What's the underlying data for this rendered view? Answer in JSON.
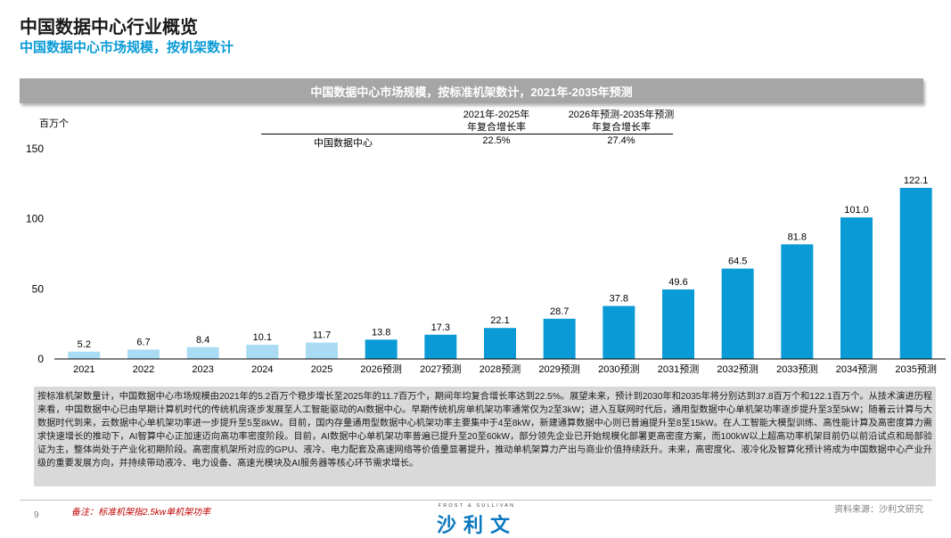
{
  "page": {
    "title": "中国数据中心行业概览",
    "subtitle": "中国数据中心市场规模，按机架数计"
  },
  "chart_banner": "中国数据中心市场规模，按标准机架数计，2021年-2035年预测",
  "cagr_table": {
    "header_1_line1": "2021年-2025年",
    "header_1_line2": "年复合增长率",
    "header_2_line1": "2026年预测-2035年预测",
    "header_2_line2": "年复合增长率",
    "row_label": "中国数据中心",
    "value_1": "22.5%",
    "value_2": "27.4%"
  },
  "chart_data": {
    "type": "bar",
    "unit_label": "百万个",
    "categories": [
      "2021",
      "2022",
      "2023",
      "2024",
      "2025",
      "2026预测",
      "2027预测",
      "2028预测",
      "2029预测",
      "2030预测",
      "2031预测",
      "2032预测",
      "2033预测",
      "2034预测",
      "2035预测"
    ],
    "values": [
      5.2,
      6.7,
      8.4,
      10.1,
      11.7,
      13.8,
      17.3,
      22.1,
      28.7,
      37.8,
      49.6,
      64.5,
      81.8,
      101.0,
      122.1
    ],
    "value_labels": [
      "5.2",
      "6.7",
      "8.4",
      "10.1",
      "11.7",
      "13.8",
      "17.3",
      "22.1",
      "28.7",
      "37.8",
      "49.6",
      "64.5",
      "81.8",
      "101.0",
      "122.1"
    ],
    "ylim": [
      0,
      150
    ],
    "yticks": [
      0,
      50,
      100,
      150
    ],
    "historical_count": 5,
    "colors": {
      "historical": "#a9dcf3",
      "forecast": "#0a9bd6"
    },
    "grid": false
  },
  "description": "按标准机架数量计，中国数据中心市场规模由2021年的5.2百万个稳步增长至2025年的11.7百万个，期间年均复合增长率达到22.5%。展望未来，预计到2030年和2035年将分别达到37.8百万个和122.1百万个。从技术演进历程来看，中国数据中心已由早期计算机时代的传统机房逐步发展至人工智能驱动的AI数据中心。早期传统机房单机架功率通常仅为2至3kW；进入互联网时代后，通用型数据中心单机架功率逐步提升至3至5kW；随着云计算与大数据时代到来，云数据中心单机架功率进一步提升至5至8kW。目前，国内存量通用型数据中心机架功率主要集中于4至8kW，新建通算数据中心则已普遍提升至8至15kW。在人工智能大模型训练、高性能计算及高密度算力需求快速增长的推动下，AI智算中心正加速迈向高功率密度阶段。目前，AI数据中心单机架功率普遍已提升至20至60kW，部分领先企业已开始规模化部署更高密度方案，而100kW以上超高功率机架目前仍以前沿试点和局部验证为主，整体尚处于产业化初期阶段。高密度机架所对应的GPU、液冷、电力配套及高速网络等价值量显著提升，推动单机架算力产出与商业价值持续跃升。未来，高密度化、液冷化及智算化预计将成为中国数据中心产业升级的重要发展方向，并持续带动液冷、电力设备、高速光模块及AI服务器等核心环节需求增长。",
  "footer": {
    "page_number": "9",
    "footnote": "备注：标准机架指2.5kw单机架功率",
    "logo_sub": "FROST & SULLIVAN",
    "logo_text": "沙利文",
    "source": "资料来源：沙利文研究"
  }
}
